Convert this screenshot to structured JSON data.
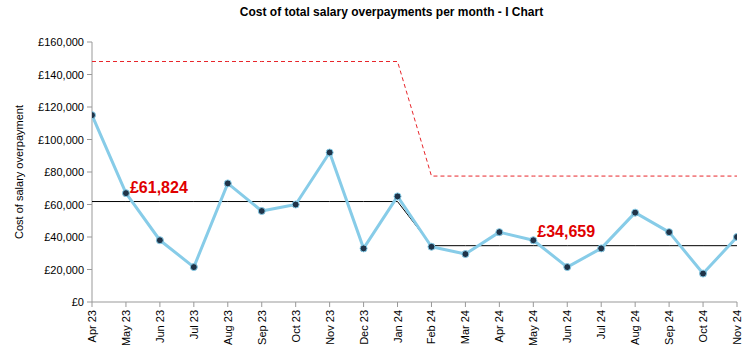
{
  "chart_data": {
    "type": "line",
    "title": "Cost of total salary overpayments per month - I Chart",
    "y_label": "Cost of salary overpayment",
    "categories": [
      "Apr 23",
      "May 23",
      "Jun 23",
      "Jul 23",
      "Aug 23",
      "Sep 23",
      "Oct 23",
      "Nov 23",
      "Dec 23",
      "Jan 24",
      "Feb 24",
      "Mar 24",
      "Apr 24",
      "May 24",
      "Jun 24",
      "Jul 24",
      "Aug 24",
      "Sep 24",
      "Oct 24",
      "Nov 24"
    ],
    "series": [
      {
        "color": "#87cce8",
        "marker": "circle",
        "line_style": "solid",
        "values": [
          115000,
          67000,
          38000,
          21500,
          73000,
          56000,
          60000,
          92000,
          33000,
          65000,
          34000,
          29500,
          43000,
          38000,
          21500,
          33000,
          55000,
          43000,
          17500,
          40000
        ]
      },
      {
        "color": "#000000",
        "marker": "none",
        "line_style": "solid",
        "values": [
          61824,
          61824,
          61824,
          61824,
          61824,
          61824,
          61824,
          61824,
          61824,
          61824,
          34659,
          34659,
          34659,
          34659,
          34659,
          34659,
          34659,
          34659,
          34659,
          34659
        ]
      },
      {
        "color": "#e8262b",
        "marker": "none",
        "line_style": "dashed",
        "values": [
          148000,
          148000,
          148000,
          148000,
          148000,
          148000,
          148000,
          148000,
          148000,
          148000,
          77500,
          77500,
          77500,
          77500,
          77500,
          77500,
          77500,
          77500,
          77500,
          77500
        ]
      }
    ],
    "annotations": [
      {
        "label": "£61,824",
        "category": "May 23",
        "value": 61824,
        "color": "#e00000"
      },
      {
        "label": "£34,659",
        "category": "May 24",
        "value": 34659,
        "color": "#e00000"
      }
    ],
    "ylim": [
      0,
      160000
    ],
    "yticks": [
      {
        "value": 0,
        "label": "£0"
      },
      {
        "value": 20000,
        "label": "£20,000"
      },
      {
        "value": 40000,
        "label": "£40,000"
      },
      {
        "value": 60000,
        "label": "£60,000"
      },
      {
        "value": 80000,
        "label": "£80,000"
      },
      {
        "value": 100000,
        "label": "£100,000"
      },
      {
        "value": 120000,
        "label": "£120,000"
      },
      {
        "value": 140000,
        "label": "£140,000"
      },
      {
        "value": 160000,
        "label": "£160,000"
      }
    ],
    "grid": false
  }
}
